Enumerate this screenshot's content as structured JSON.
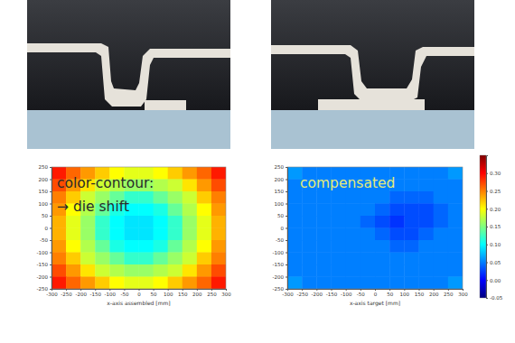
{
  "chart_data": [
    {
      "type": "heatmap",
      "x_label": "x-axis assembled [mm]",
      "annotations": [
        {
          "text": "color-contour:",
          "color": "#2a2a2a"
        },
        {
          "text": "→ die shift",
          "color": "#2a2a2a"
        }
      ],
      "x": [
        -275,
        -225,
        -175,
        -125,
        -75,
        -25,
        25,
        75,
        125,
        175,
        225,
        275
      ],
      "y": [
        225,
        175,
        125,
        75,
        25,
        -25,
        -75,
        -125,
        -175,
        -225
      ],
      "z": [
        [
          0.29,
          0.26,
          0.24,
          0.22,
          0.2,
          0.19,
          0.19,
          0.2,
          0.22,
          0.24,
          0.26,
          0.29
        ],
        [
          0.27,
          0.24,
          0.21,
          0.18,
          0.17,
          0.16,
          0.16,
          0.17,
          0.18,
          0.21,
          0.24,
          0.27
        ],
        [
          0.25,
          0.22,
          0.18,
          0.16,
          0.14,
          0.12,
          0.12,
          0.14,
          0.16,
          0.18,
          0.22,
          0.25
        ],
        [
          0.24,
          0.2,
          0.17,
          0.14,
          0.11,
          0.1,
          0.1,
          0.11,
          0.14,
          0.17,
          0.2,
          0.24
        ],
        [
          0.23,
          0.19,
          0.16,
          0.12,
          0.1,
          0.09,
          0.09,
          0.1,
          0.12,
          0.16,
          0.19,
          0.23
        ],
        [
          0.23,
          0.19,
          0.16,
          0.12,
          0.1,
          0.09,
          0.09,
          0.1,
          0.12,
          0.16,
          0.19,
          0.23
        ],
        [
          0.24,
          0.2,
          0.17,
          0.14,
          0.11,
          0.1,
          0.1,
          0.11,
          0.14,
          0.17,
          0.2,
          0.24
        ],
        [
          0.25,
          0.22,
          0.18,
          0.16,
          0.14,
          0.12,
          0.12,
          0.14,
          0.16,
          0.18,
          0.22,
          0.25
        ],
        [
          0.27,
          0.24,
          0.21,
          0.18,
          0.17,
          0.16,
          0.16,
          0.17,
          0.18,
          0.21,
          0.24,
          0.27
        ],
        [
          0.29,
          0.26,
          0.24,
          0.22,
          0.2,
          0.19,
          0.19,
          0.2,
          0.22,
          0.24,
          0.26,
          0.29
        ]
      ],
      "xlim": [
        -300,
        300
      ],
      "ylim": [
        -250,
        250
      ],
      "xticks": [
        -300,
        -250,
        -200,
        -150,
        -100,
        -50,
        0,
        50,
        100,
        150,
        200,
        250,
        300
      ],
      "yticks": [
        -250,
        -200,
        -150,
        -100,
        -50,
        0,
        50,
        100,
        150,
        200,
        250
      ]
    },
    {
      "type": "heatmap",
      "x_label": "x-axis target [mm]",
      "annotations": [
        {
          "text": "compensated",
          "color": "#e4ea7a"
        }
      ],
      "x": [
        -275,
        -225,
        -175,
        -125,
        -75,
        -25,
        25,
        75,
        125,
        175,
        225,
        275
      ],
      "y": [
        225,
        175,
        125,
        75,
        25,
        -25,
        -75,
        -125,
        -175,
        -225
      ],
      "z": [
        [
          0.06,
          0.05,
          0.05,
          0.05,
          0.05,
          0.05,
          0.05,
          0.05,
          0.05,
          0.05,
          0.05,
          0.06
        ],
        [
          0.05,
          0.05,
          0.05,
          0.05,
          0.05,
          0.05,
          0.05,
          0.05,
          0.05,
          0.05,
          0.05,
          0.05
        ],
        [
          0.05,
          0.05,
          0.05,
          0.05,
          0.05,
          0.05,
          0.05,
          0.04,
          0.04,
          0.04,
          0.05,
          0.05
        ],
        [
          0.05,
          0.05,
          0.05,
          0.05,
          0.05,
          0.05,
          0.04,
          0.03,
          0.03,
          0.03,
          0.04,
          0.05
        ],
        [
          0.05,
          0.05,
          0.05,
          0.05,
          0.05,
          0.04,
          0.03,
          0.02,
          0.03,
          0.03,
          0.04,
          0.05
        ],
        [
          0.05,
          0.05,
          0.05,
          0.05,
          0.05,
          0.05,
          0.04,
          0.03,
          0.03,
          0.04,
          0.05,
          0.05
        ],
        [
          0.05,
          0.05,
          0.05,
          0.05,
          0.05,
          0.05,
          0.05,
          0.04,
          0.04,
          0.05,
          0.05,
          0.05
        ],
        [
          0.05,
          0.05,
          0.05,
          0.05,
          0.05,
          0.05,
          0.05,
          0.05,
          0.05,
          0.05,
          0.05,
          0.05
        ],
        [
          0.05,
          0.05,
          0.05,
          0.05,
          0.05,
          0.05,
          0.05,
          0.05,
          0.05,
          0.05,
          0.05,
          0.05
        ],
        [
          0.06,
          0.05,
          0.05,
          0.05,
          0.05,
          0.05,
          0.05,
          0.05,
          0.05,
          0.05,
          0.05,
          0.06
        ]
      ],
      "xlim": [
        -300,
        300
      ],
      "ylim": [
        -250,
        250
      ],
      "xticks": [
        -300,
        -250,
        -200,
        -150,
        -100,
        -50,
        0,
        50,
        100,
        150,
        200,
        250,
        300
      ],
      "yticks": [
        -250,
        -200,
        -150,
        -100,
        -50,
        0,
        50,
        100,
        150,
        200,
        250
      ],
      "colorbar_lim": [
        -0.05,
        0.35
      ],
      "colorbar_ticks": [
        {
          "value": -0.05,
          "label": "-0.05"
        },
        {
          "value": 0,
          "label": "0.00"
        },
        {
          "value": 0.05,
          "label": "0.05"
        },
        {
          "value": 0.1,
          "label": "0.10"
        },
        {
          "value": 0.15,
          "label": "0.15"
        },
        {
          "value": 0.2,
          "label": "0.20"
        },
        {
          "value": 0.25,
          "label": "0.25"
        },
        {
          "value": 0.3,
          "label": "0.30"
        }
      ]
    }
  ]
}
